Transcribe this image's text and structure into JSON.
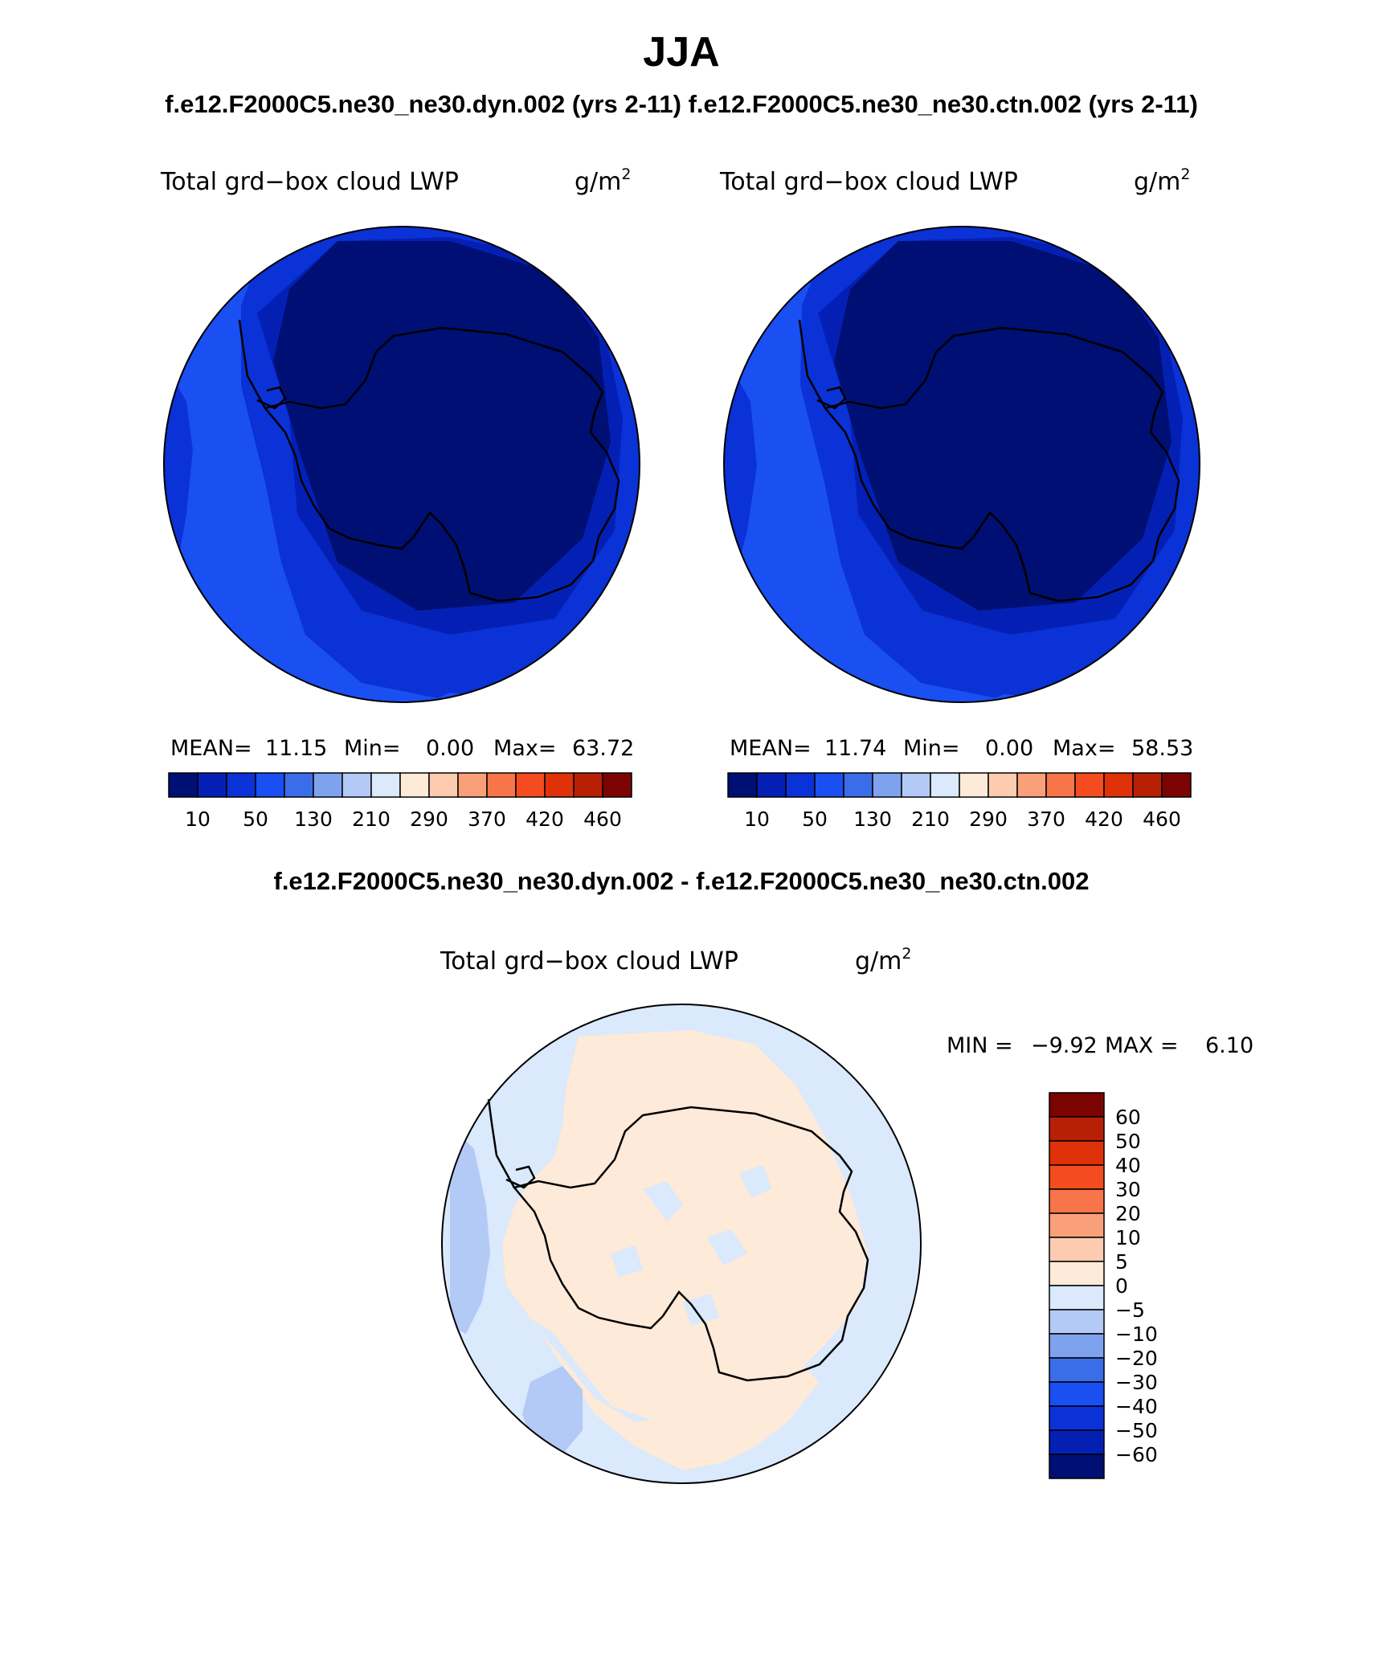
{
  "season": "JJA",
  "top_title": "f.e12.F2000C5.ne30_ne30.dyn.002 (yrs 2-11)  f.e12.F2000C5.ne30_ne30.ctn.002 (yrs 2-11)",
  "diff_title": "f.e12.F2000C5.ne30_ne30.dyn.002 - f.e12.F2000C5.ne30_ne30.ctn.002",
  "variable": "Total grd−box cloud LWP",
  "units_base": "g/m",
  "units_exp": "2",
  "colors": {
    "abs_bands": [
      "#000f73",
      "#0420b4",
      "#0b32d6",
      "#1a4ff2",
      "#3a6de8",
      "#7fa2ef",
      "#b3c9f6",
      "#dae9fb",
      "#feead8",
      "#fccbb0",
      "#f9a07a",
      "#f77548",
      "#f44c1e",
      "#e03209",
      "#b82006",
      "#7b0402"
    ],
    "diff_bands": [
      "#000f73",
      "#0420b4",
      "#0b32d6",
      "#1a4ff2",
      "#3a6de8",
      "#7fa2ef",
      "#b3c9f6",
      "#dae9fb",
      "#feead8",
      "#fccbb0",
      "#f9a07a",
      "#f77548",
      "#f44c1e",
      "#e03209",
      "#b82006",
      "#7b0402"
    ]
  },
  "panels": [
    {
      "id": "dyn",
      "mean_label": "MEAN=",
      "mean": "11.15",
      "min_label": "Min=",
      "min": "0.00",
      "max_label": "Max=",
      "max": "63.72"
    },
    {
      "id": "ctn",
      "mean_label": "MEAN=",
      "mean": "11.74",
      "min_label": "Min=",
      "min": "0.00",
      "max_label": "Max=",
      "max": "58.53"
    }
  ],
  "abs_ticks": [
    "10",
    "50",
    "130",
    "210",
    "290",
    "370",
    "420",
    "460"
  ],
  "diff_stats": {
    "min_label": "MIN =",
    "min": "−9.92",
    "max_label": "MAX =",
    "max": "6.10"
  },
  "diff_ticks": [
    "60",
    "50",
    "40",
    "30",
    "20",
    "10",
    "5",
    "0",
    "−5",
    "−10",
    "−20",
    "−30",
    "−40",
    "−50",
    "−60"
  ]
}
